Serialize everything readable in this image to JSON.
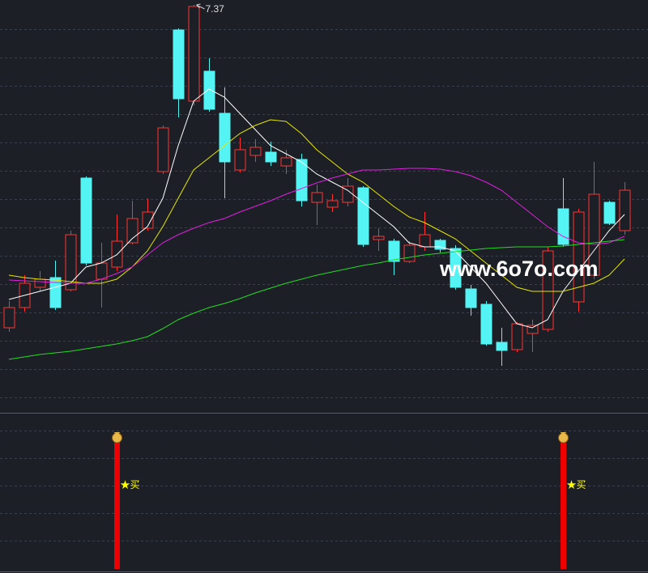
{
  "chart_data": {
    "type": "candlestick",
    "open": [
      5.375,
      5.5,
      5.625,
      5.685,
      5.61,
      6.3,
      5.675,
      5.75,
      5.9,
      5.99,
      6.34,
      7.215,
      6.775,
      6.96,
      6.7,
      6.35,
      6.44,
      6.46,
      6.375,
      6.415,
      6.15,
      6.12,
      6.15,
      6.24,
      5.92,
      5.91,
      5.785,
      5.875,
      5.915,
      5.865,
      5.615,
      5.52,
      5.285,
      5.24,
      5.34,
      5.365,
      6.11,
      5.535,
      5.7,
      6.15,
      5.975
    ],
    "high": [
      5.54,
      5.7,
      5.725,
      5.79,
      5.975,
      6.31,
      5.9,
      6.075,
      6.16,
      6.175,
      6.625,
      7.225,
      7.37,
      7.04,
      6.86,
      6.55,
      6.54,
      6.525,
      6.475,
      6.45,
      6.26,
      6.2,
      6.3,
      6.25,
      5.99,
      5.925,
      5.91,
      6.09,
      5.925,
      5.885,
      5.64,
      5.54,
      5.375,
      5.41,
      5.425,
      5.875,
      6.3,
      6.11,
      6.4,
      6.16,
      6.275
    ],
    "low": [
      5.35,
      5.475,
      5.6,
      5.485,
      5.6,
      5.76,
      5.5,
      5.725,
      5.89,
      5.975,
      6.325,
      6.675,
      6.75,
      6.71,
      6.175,
      6.335,
      6.4,
      6.375,
      6.325,
      6.125,
      6.01,
      6.09,
      6.125,
      5.875,
      5.85,
      5.7,
      5.775,
      5.85,
      5.84,
      5.61,
      5.45,
      5.265,
      5.14,
      5.225,
      5.225,
      5.35,
      5.875,
      5.475,
      5.675,
      6.01,
      5.95
    ],
    "close": [
      5.5,
      5.65,
      5.675,
      5.5,
      5.95,
      5.775,
      5.775,
      5.91,
      6.05,
      6.09,
      6.61,
      6.79,
      7.36,
      6.725,
      6.4,
      6.475,
      6.49,
      6.4,
      6.425,
      6.16,
      6.21,
      6.16,
      6.25,
      5.89,
      5.94,
      5.785,
      5.885,
      5.95,
      5.86,
      5.625,
      5.5,
      5.275,
      5.235,
      5.4,
      5.39,
      5.85,
      5.89,
      6.09,
      6.2,
      6.02,
      6.225
    ],
    "up_color": "#ff3333",
    "down_color": "#54f4f4",
    "series": [
      {
        "color": "#ffffff",
        "values": [
          5.55,
          5.575,
          5.6,
          5.625,
          5.65,
          5.75,
          5.775,
          5.825,
          5.925,
          6.0,
          6.175,
          6.5,
          6.775,
          6.85,
          6.8,
          6.7,
          6.6,
          6.5,
          6.45,
          6.4,
          6.325,
          6.275,
          6.225,
          6.15,
          6.075,
          6.0,
          5.9,
          5.875,
          5.875,
          5.85,
          5.75,
          5.65,
          5.525,
          5.4,
          5.375,
          5.425,
          5.6,
          5.725,
          5.85,
          5.975,
          6.075
        ]
      },
      {
        "color": "#e6e600",
        "values": [
          5.7,
          5.685,
          5.675,
          5.67,
          5.66,
          5.65,
          5.65,
          5.675,
          5.75,
          5.85,
          6.0,
          6.175,
          6.35,
          6.425,
          6.5,
          6.575,
          6.625,
          6.66,
          6.65,
          6.575,
          6.475,
          6.4,
          6.325,
          6.275,
          6.2,
          6.125,
          6.06,
          6.025,
          5.975,
          5.925,
          5.85,
          5.775,
          5.7,
          5.625,
          5.6,
          5.6,
          5.6,
          5.625,
          5.65,
          5.7,
          5.8
        ]
      },
      {
        "color": "#e020e0",
        "values": [
          5.67,
          5.665,
          5.66,
          5.655,
          5.65,
          5.65,
          5.675,
          5.71,
          5.75,
          5.825,
          5.9,
          5.95,
          5.99,
          6.025,
          6.05,
          6.09,
          6.125,
          6.16,
          6.2,
          6.235,
          6.27,
          6.3,
          6.325,
          6.35,
          6.35,
          6.355,
          6.36,
          6.36,
          6.355,
          6.34,
          6.315,
          6.275,
          6.225,
          6.15,
          6.075,
          6.0,
          5.94,
          5.9,
          5.89,
          5.9,
          5.94
        ]
      },
      {
        "color": "#22dd22",
        "values": [
          5.18,
          5.195,
          5.21,
          5.22,
          5.23,
          5.245,
          5.26,
          5.275,
          5.295,
          5.32,
          5.37,
          5.425,
          5.465,
          5.5,
          5.525,
          5.555,
          5.59,
          5.62,
          5.65,
          5.675,
          5.7,
          5.72,
          5.74,
          5.76,
          5.775,
          5.795,
          5.81,
          5.825,
          5.835,
          5.845,
          5.855,
          5.865,
          5.87,
          5.875,
          5.875,
          5.875,
          5.88,
          5.89,
          5.9,
          5.91,
          5.92
        ]
      }
    ],
    "ylim": [
      4.875,
      7.4
    ],
    "grid": true,
    "high_label_index": 12,
    "watermark": "www.6o7o.com",
    "signal": {
      "color": "#ee0000",
      "label": "★买",
      "values": [
        0,
        0,
        0,
        0,
        0,
        0,
        0,
        1,
        0,
        0,
        0,
        0,
        0,
        0,
        0,
        0,
        0,
        0,
        0,
        0,
        0,
        0,
        0,
        0,
        0,
        0,
        0,
        0,
        0,
        0,
        0,
        0,
        0,
        0,
        0,
        0,
        1,
        0,
        0,
        0,
        0
      ]
    }
  }
}
